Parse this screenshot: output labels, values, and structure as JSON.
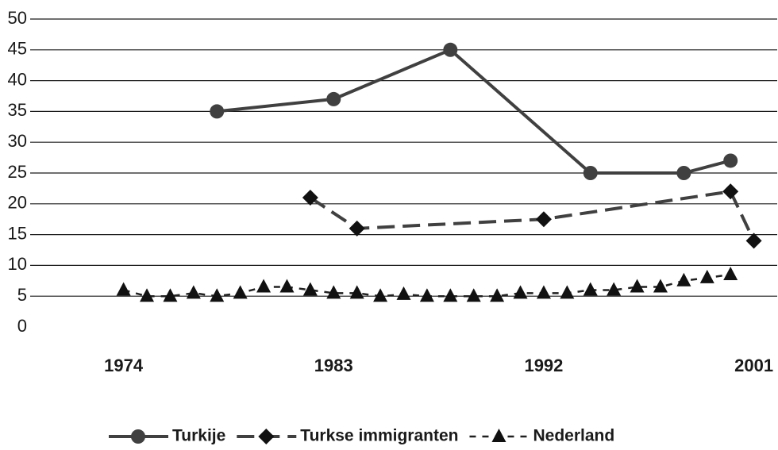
{
  "chart_data": {
    "type": "line",
    "xlim": [
      1970,
      2002
    ],
    "xticks": [
      1974,
      1983,
      1992,
      2001
    ],
    "ylim": [
      0,
      50
    ],
    "yticks": [
      0,
      5,
      10,
      15,
      20,
      25,
      30,
      35,
      40,
      45,
      50
    ],
    "grid": true,
    "legend": "bottom",
    "series": [
      {
        "name": "Turkije",
        "color": "#404040",
        "linestyle": "solid",
        "marker": "circle",
        "x": [
          1978,
          1983,
          1988,
          1994,
          1998,
          2000
        ],
        "values": [
          35,
          37,
          45,
          25,
          25,
          27
        ]
      },
      {
        "name": "Turkse immigranten",
        "color": "#404040",
        "linestyle": "dashed",
        "marker": "diamond",
        "x": [
          1982,
          1984,
          1992,
          2000,
          2001
        ],
        "values": [
          21,
          16,
          17.5,
          22,
          14
        ]
      },
      {
        "name": "Nederland",
        "color": "#202020",
        "linestyle": "dotted",
        "marker": "triangle",
        "x": [
          1974,
          1975,
          1976,
          1977,
          1978,
          1979,
          1980,
          1981,
          1982,
          1983,
          1984,
          1985,
          1986,
          1987,
          1988,
          1989,
          1990,
          1991,
          1992,
          1993,
          1994,
          1995,
          1996,
          1997,
          1998,
          1999,
          2000
        ],
        "values": [
          6,
          5,
          5,
          5.5,
          5,
          5.5,
          6.5,
          6.5,
          6,
          5.5,
          5.5,
          5,
          5.3,
          5,
          5,
          5,
          5,
          5.5,
          5.5,
          5.5,
          6,
          6,
          6.5,
          6.5,
          7.5,
          8,
          8.5
        ]
      }
    ]
  }
}
